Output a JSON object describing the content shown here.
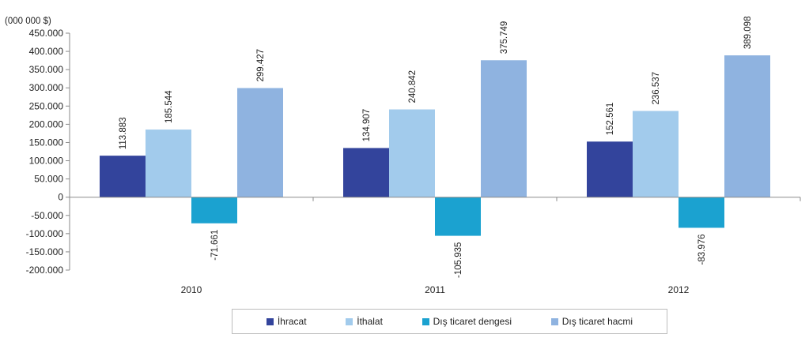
{
  "chart_data": {
    "type": "bar",
    "unit_label": "(000 000  $)",
    "categories": [
      "2010",
      "2011",
      "2012"
    ],
    "series": [
      {
        "name": "İhracat",
        "color": "#33449c",
        "values": [
          113883,
          134907,
          152561
        ],
        "labels": [
          "113.883",
          "134.907",
          "152.561"
        ]
      },
      {
        "name": "İthalat",
        "color": "#a2cbec",
        "values": [
          185544,
          240842,
          236537
        ],
        "labels": [
          "185.544",
          "240.842",
          "236.537"
        ]
      },
      {
        "name": "Dış ticaret dengesi",
        "color": "#1ba2d0",
        "values": [
          -71661,
          -105935,
          -83976
        ],
        "labels": [
          "-71.661",
          "-105.935",
          "-83.976"
        ]
      },
      {
        "name": "Dış ticaret hacmi",
        "color": "#8fb3e0",
        "values": [
          299427,
          375749,
          389098
        ],
        "labels": [
          "299.427",
          "375.749",
          "389.098"
        ]
      }
    ],
    "ylim": [
      -200000,
      450000
    ],
    "yticks": [
      450000,
      400000,
      350000,
      300000,
      250000,
      200000,
      150000,
      100000,
      50000,
      0,
      -50000,
      -100000,
      -150000,
      -200000
    ],
    "ytick_labels": [
      "450.000",
      "400.000",
      "350.000",
      "300.000",
      "250.000",
      "200.000",
      "150.000",
      "100.000",
      "50.000",
      "0",
      "-50.000",
      "-100.000",
      "-150.000",
      "-200.000"
    ],
    "grid": false,
    "legend_position": "bottom"
  }
}
